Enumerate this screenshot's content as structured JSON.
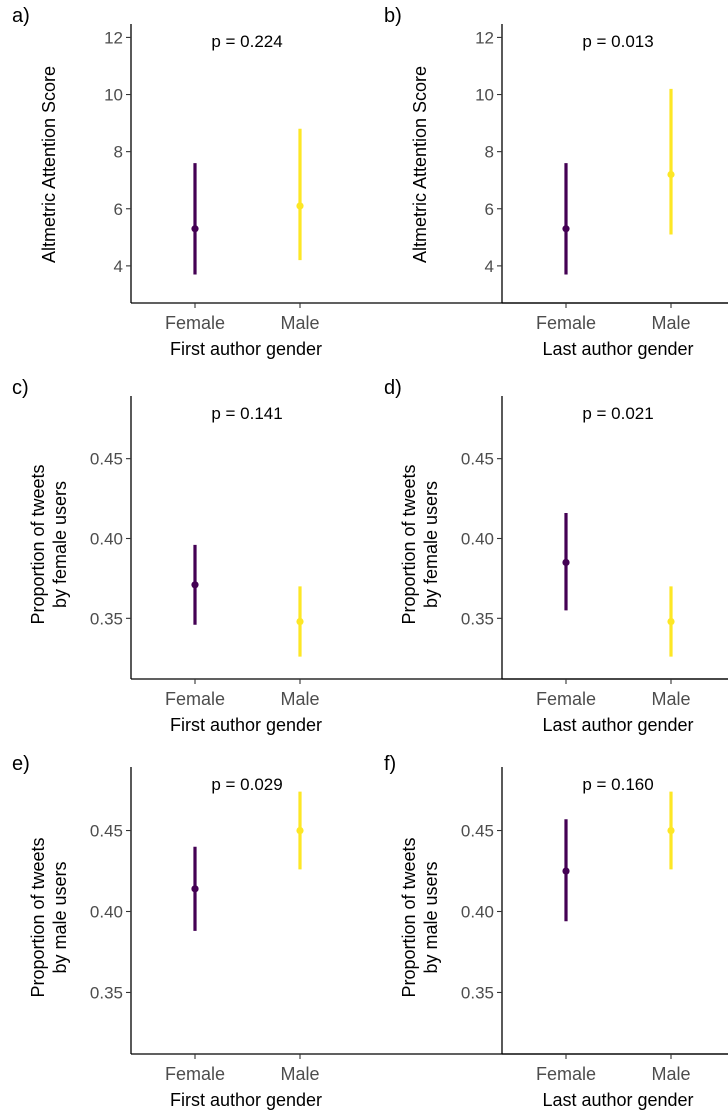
{
  "colors": {
    "female": "#440154",
    "male": "#FDE725"
  },
  "chart_data": [
    {
      "type": "errorbar",
      "panel_label": "a)",
      "annotation": "p = 0.224",
      "categories": [
        "Female",
        "Male"
      ],
      "values": [
        5.3,
        6.1
      ],
      "lower": [
        3.7,
        4.2
      ],
      "upper": [
        7.6,
        8.8
      ],
      "xlabel": "First author gender",
      "ylabel": [
        "Altmetric Attention Score"
      ],
      "yticks": [
        4,
        6,
        8,
        10,
        12
      ],
      "ylim": [
        2.7,
        12.4
      ]
    },
    {
      "type": "errorbar",
      "panel_label": "b)",
      "annotation": "p = 0.013",
      "categories": [
        "Female",
        "Male"
      ],
      "values": [
        5.3,
        7.2
      ],
      "lower": [
        3.7,
        5.1
      ],
      "upper": [
        7.6,
        10.2
      ],
      "xlabel": "Last author gender",
      "ylabel": [
        "Altmetric Attention Score"
      ],
      "yticks": [
        4,
        6,
        8,
        10,
        12
      ],
      "ylim": [
        2.7,
        12.4
      ]
    },
    {
      "type": "errorbar",
      "panel_label": "c)",
      "annotation": "p = 0.141",
      "categories": [
        "Female",
        "Male"
      ],
      "values": [
        0.371,
        0.348
      ],
      "lower": [
        0.346,
        0.326
      ],
      "upper": [
        0.396,
        0.37
      ],
      "xlabel": "First author gender",
      "ylabel": [
        "Proportion of tweets",
        "by female users"
      ],
      "yticks": [
        0.35,
        0.4,
        0.45
      ],
      "yticklabels": [
        "0.35",
        "0.40",
        "0.45"
      ],
      "ylim": [
        0.312,
        0.488
      ]
    },
    {
      "type": "errorbar",
      "panel_label": "d)",
      "annotation": "p = 0.021",
      "categories": [
        "Female",
        "Male"
      ],
      "values": [
        0.385,
        0.348
      ],
      "lower": [
        0.355,
        0.326
      ],
      "upper": [
        0.416,
        0.37
      ],
      "xlabel": "Last author gender",
      "ylabel": [
        "Proportion of tweets",
        "by female users"
      ],
      "yticks": [
        0.35,
        0.4,
        0.45
      ],
      "yticklabels": [
        "0.35",
        "0.40",
        "0.45"
      ],
      "ylim": [
        0.312,
        0.488
      ]
    },
    {
      "type": "errorbar",
      "panel_label": "e)",
      "annotation": "p = 0.029",
      "categories": [
        "Female",
        "Male"
      ],
      "values": [
        0.414,
        0.45
      ],
      "lower": [
        0.388,
        0.426
      ],
      "upper": [
        0.44,
        0.474
      ],
      "xlabel": "First author gender",
      "ylabel": [
        "Proportion of tweets",
        "by male users"
      ],
      "yticks": [
        0.35,
        0.4,
        0.45
      ],
      "yticklabels": [
        "0.35",
        "0.40",
        "0.45"
      ],
      "ylim": [
        0.312,
        0.488
      ]
    },
    {
      "type": "errorbar",
      "panel_label": "f)",
      "annotation": "p = 0.160",
      "categories": [
        "Female",
        "Male"
      ],
      "values": [
        0.425,
        0.45
      ],
      "lower": [
        0.394,
        0.426
      ],
      "upper": [
        0.457,
        0.474
      ],
      "xlabel": "Last author gender",
      "ylabel": [
        "Proportion of tweets",
        "by male users"
      ],
      "yticks": [
        0.35,
        0.4,
        0.45
      ],
      "yticklabels": [
        "0.35",
        "0.40",
        "0.45"
      ],
      "ylim": [
        0.312,
        0.488
      ]
    }
  ]
}
